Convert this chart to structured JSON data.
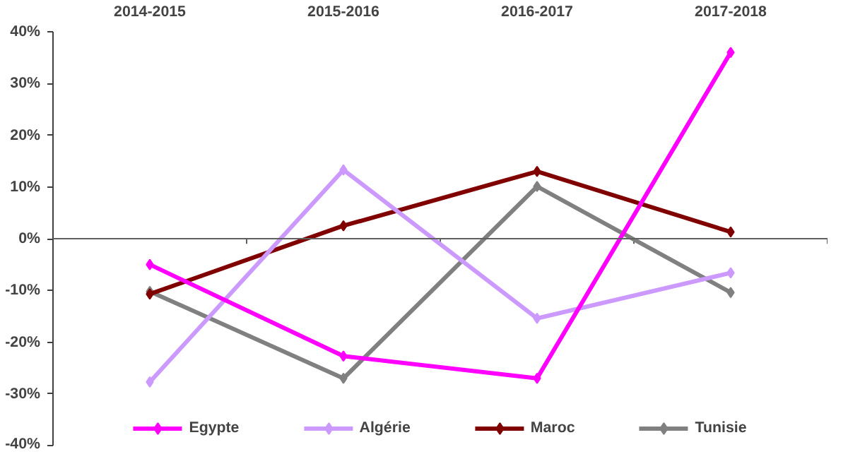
{
  "chart_data": {
    "type": "line",
    "categories": [
      "2014-2015",
      "2015-2016",
      "2016-2017",
      "2017-2018"
    ],
    "series": [
      {
        "name": "Egypte",
        "color": "#ff00ff",
        "values": [
          -5.0,
          -22.7,
          -27,
          36
        ]
      },
      {
        "name": "Algérie",
        "color": "#cc99ff",
        "values": [
          -27.7,
          13.3,
          -15.4,
          -6.6
        ]
      },
      {
        "name": "Maroc",
        "color": "#800000",
        "values": [
          -10.7,
          2.5,
          13,
          1.3
        ]
      },
      {
        "name": "Tunisie",
        "color": "#808080",
        "values": [
          -10.2,
          -27,
          10.1,
          -10.4
        ]
      }
    ],
    "ylim": [
      -40,
      40
    ],
    "yticks": [
      {
        "value": -40,
        "label": "-40%"
      },
      {
        "value": -30,
        "label": "-30%"
      },
      {
        "value": -20,
        "label": "-20%"
      },
      {
        "value": -10,
        "label": "-10%"
      },
      {
        "value": 0,
        "label": "0%"
      },
      {
        "value": 10,
        "label": "10%"
      },
      {
        "value": 20,
        "label": "20%"
      },
      {
        "value": 30,
        "label": "30%"
      },
      {
        "value": 40,
        "label": "40%"
      }
    ],
    "ref_lines": [
      {
        "axis": "y",
        "value": 0,
        "color": "#606060"
      }
    ],
    "grid": false,
    "legend": "bottom",
    "marker": "diamond",
    "line_style": "solid"
  }
}
